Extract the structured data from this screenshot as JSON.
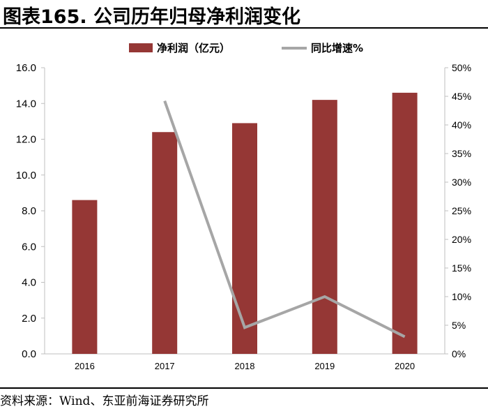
{
  "header": {
    "title": "图表165. 公司历年归母净利润变化"
  },
  "footer": {
    "source": "资料来源：Wind、东亚前海证券研究所"
  },
  "colors": {
    "bar": "#953735",
    "line": "#a6a6a6",
    "axis": "#bfbfbf"
  },
  "chart_data": {
    "type": "bar",
    "title": "图表165. 公司历年归母净利润变化",
    "categories": [
      "2016",
      "2017",
      "2018",
      "2019",
      "2020"
    ],
    "series": [
      {
        "name": "净利润（亿元）",
        "type": "bar",
        "axis": "left",
        "values": [
          8.6,
          12.4,
          12.9,
          14.2,
          14.6
        ]
      },
      {
        "name": "同比增速%",
        "type": "line",
        "axis": "right",
        "values": [
          null,
          44.2,
          4.6,
          10.0,
          3.0
        ]
      }
    ],
    "ylim": [
      0,
      16
    ],
    "yticks": [
      "0.0",
      "2.0",
      "4.0",
      "6.0",
      "8.0",
      "10.0",
      "12.0",
      "14.0",
      "16.0"
    ],
    "y2lim": [
      0,
      50
    ],
    "y2ticks": [
      "0%",
      "5%",
      "10%",
      "15%",
      "20%",
      "25%",
      "30%",
      "35%",
      "40%",
      "45%",
      "50%"
    ],
    "legend_position": "top-center",
    "grid": false
  }
}
